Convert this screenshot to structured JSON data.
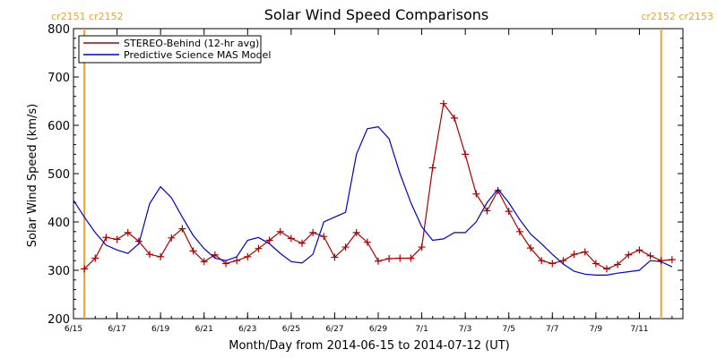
{
  "chart_data": {
    "type": "line",
    "title": "Solar Wind Speed Comparisons",
    "xlabel": "Month/Day from 2014-06-15 to 2014-07-12 (UT)",
    "ylabel": "Solar Wind Speed (km/s)",
    "ylim": [
      200,
      800
    ],
    "xlim": [
      "2014-06-15",
      "2014-07-12"
    ],
    "x_ticks": [
      "6/15",
      "6/17",
      "6/19",
      "6/21",
      "6/23",
      "6/25",
      "6/27",
      "6/29",
      "7/1",
      "7/3",
      "7/5",
      "7/7",
      "7/9",
      "7/11"
    ],
    "y_ticks": [
      200,
      300,
      400,
      500,
      600,
      700,
      800
    ],
    "legend_position": "top-left",
    "carrington_labels": [
      {
        "text": "cr2151 cr2152",
        "side": "left",
        "date": "2014-06-15T12:00"
      },
      {
        "text": "cr2152 cr2153",
        "side": "right",
        "date": "2014-07-12"
      }
    ],
    "series": [
      {
        "name": "STEREO-Behind (12-hr avg)",
        "color": "#aa0000",
        "markers": "plus",
        "points": [
          [
            "2014-06-15T12:00",
            303
          ],
          [
            "2014-06-16T00:00",
            325
          ],
          [
            "2014-06-16T12:00",
            368
          ],
          [
            "2014-06-17T00:00",
            364
          ],
          [
            "2014-06-17T12:00",
            378
          ],
          [
            "2014-06-18T00:00",
            360
          ],
          [
            "2014-06-18T12:00",
            333
          ],
          [
            "2014-06-19T00:00",
            328
          ],
          [
            "2014-06-19T12:00",
            367
          ],
          [
            "2014-06-20T00:00",
            386
          ],
          [
            "2014-06-20T12:00",
            340
          ],
          [
            "2014-06-21T00:00",
            318
          ],
          [
            "2014-06-21T12:00",
            332
          ],
          [
            "2014-06-22T00:00",
            314
          ],
          [
            "2014-06-22T12:00",
            320
          ],
          [
            "2014-06-23T00:00",
            328
          ],
          [
            "2014-06-23T12:00",
            345
          ],
          [
            "2014-06-24T00:00",
            362
          ],
          [
            "2014-06-24T12:00",
            380
          ],
          [
            "2014-06-25T00:00",
            366
          ],
          [
            "2014-06-25T12:00",
            356
          ],
          [
            "2014-06-26T00:00",
            378
          ],
          [
            "2014-06-26T12:00",
            370
          ],
          [
            "2014-06-27T00:00",
            327
          ],
          [
            "2014-06-27T12:00",
            348
          ],
          [
            "2014-06-28T00:00",
            378
          ],
          [
            "2014-06-28T12:00",
            358
          ],
          [
            "2014-06-29T00:00",
            319
          ],
          [
            "2014-06-29T12:00",
            324
          ],
          [
            "2014-06-30T00:00",
            325
          ],
          [
            "2014-06-30T12:00",
            325
          ],
          [
            "2014-07-01T00:00",
            348
          ],
          [
            "2014-07-01T12:00",
            512
          ],
          [
            "2014-07-02T00:00",
            645
          ],
          [
            "2014-07-02T12:00",
            615
          ],
          [
            "2014-07-03T00:00",
            540
          ],
          [
            "2014-07-03T12:00",
            458
          ],
          [
            "2014-07-04T00:00",
            423
          ],
          [
            "2014-07-04T12:00",
            465
          ],
          [
            "2014-07-05T00:00",
            422
          ],
          [
            "2014-07-05T12:00",
            380
          ],
          [
            "2014-07-06T00:00",
            346
          ],
          [
            "2014-07-06T12:00",
            320
          ],
          [
            "2014-07-07T00:00",
            314
          ],
          [
            "2014-07-07T12:00",
            320
          ],
          [
            "2014-07-08T00:00",
            333
          ],
          [
            "2014-07-08T12:00",
            338
          ],
          [
            "2014-07-09T00:00",
            314
          ],
          [
            "2014-07-09T12:00",
            303
          ],
          [
            "2014-07-10T00:00",
            312
          ],
          [
            "2014-07-10T12:00",
            332
          ],
          [
            "2014-07-11T00:00",
            342
          ],
          [
            "2014-07-11T12:00",
            330
          ],
          [
            "2014-07-12T00:00",
            320
          ],
          [
            "2014-07-12T12:00",
            322
          ]
        ]
      },
      {
        "name": "Predictive Science MAS Model",
        "color": "#0000cc",
        "markers": "none",
        "points": [
          [
            "2014-06-15T00:00",
            445
          ],
          [
            "2014-06-15T12:00",
            410
          ],
          [
            "2014-06-16T00:00",
            378
          ],
          [
            "2014-06-16T12:00",
            352
          ],
          [
            "2014-06-17T00:00",
            342
          ],
          [
            "2014-06-17T12:00",
            335
          ],
          [
            "2014-06-18T00:00",
            355
          ],
          [
            "2014-06-18T12:00",
            438
          ],
          [
            "2014-06-19T00:00",
            473
          ],
          [
            "2014-06-19T12:00",
            450
          ],
          [
            "2014-06-20T00:00",
            410
          ],
          [
            "2014-06-20T12:00",
            372
          ],
          [
            "2014-06-21T00:00",
            345
          ],
          [
            "2014-06-21T12:00",
            325
          ],
          [
            "2014-06-22T00:00",
            320
          ],
          [
            "2014-06-22T12:00",
            328
          ],
          [
            "2014-06-23T00:00",
            362
          ],
          [
            "2014-06-23T12:00",
            368
          ],
          [
            "2014-06-24T00:00",
            355
          ],
          [
            "2014-06-24T12:00",
            335
          ],
          [
            "2014-06-25T00:00",
            318
          ],
          [
            "2014-06-25T12:00",
            315
          ],
          [
            "2014-06-26T00:00",
            333
          ],
          [
            "2014-06-26T12:00",
            400
          ],
          [
            "2014-06-27T00:00",
            410
          ],
          [
            "2014-06-27T12:00",
            420
          ],
          [
            "2014-06-28T00:00",
            540
          ],
          [
            "2014-06-28T12:00",
            593
          ],
          [
            "2014-06-29T00:00",
            597
          ],
          [
            "2014-06-29T12:00",
            572
          ],
          [
            "2014-06-30T00:00",
            500
          ],
          [
            "2014-06-30T12:00",
            440
          ],
          [
            "2014-07-01T00:00",
            390
          ],
          [
            "2014-07-01T12:00",
            362
          ],
          [
            "2014-07-02T00:00",
            365
          ],
          [
            "2014-07-02T12:00",
            378
          ],
          [
            "2014-07-03T00:00",
            378
          ],
          [
            "2014-07-03T12:00",
            400
          ],
          [
            "2014-07-04T00:00",
            440
          ],
          [
            "2014-07-04T12:00",
            468
          ],
          [
            "2014-07-05T00:00",
            440
          ],
          [
            "2014-07-05T12:00",
            405
          ],
          [
            "2014-07-06T00:00",
            375
          ],
          [
            "2014-07-06T12:00",
            355
          ],
          [
            "2014-07-07T00:00",
            333
          ],
          [
            "2014-07-07T12:00",
            313
          ],
          [
            "2014-07-08T00:00",
            298
          ],
          [
            "2014-07-08T12:00",
            292
          ],
          [
            "2014-07-09T00:00",
            290
          ],
          [
            "2014-07-09T12:00",
            290
          ],
          [
            "2014-07-10T00:00",
            294
          ],
          [
            "2014-07-10T12:00",
            297
          ],
          [
            "2014-07-11T00:00",
            300
          ],
          [
            "2014-07-11T12:00",
            320
          ],
          [
            "2014-07-12T00:00",
            318
          ],
          [
            "2014-07-12T12:00",
            307
          ]
        ]
      }
    ]
  }
}
